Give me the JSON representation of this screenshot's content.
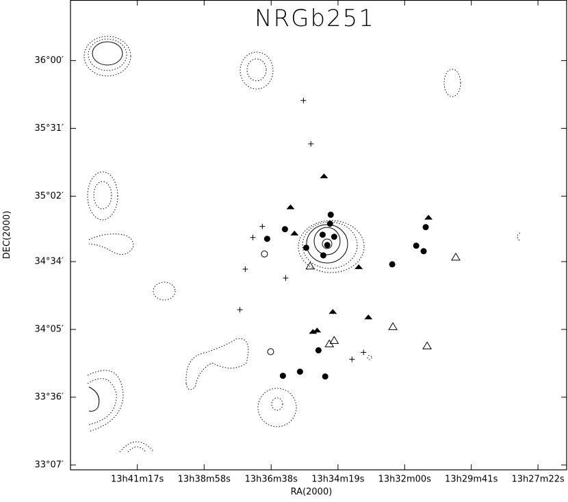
{
  "chart_data": {
    "type": "scatter",
    "title": "NRGb251",
    "x_label": "RA(2000)",
    "y_label": "DEC(2000)",
    "xlim": [
      13.7268,
      13.4395
    ],
    "ylim": [
      33.0823,
      36.4318
    ],
    "xticks": [
      {
        "value": 13.6881,
        "label": "13h41m17s"
      },
      {
        "value": 13.6494,
        "label": "13h38m58s"
      },
      {
        "value": 13.6106,
        "label": "13h36m38s"
      },
      {
        "value": 13.5719,
        "label": "13h34m19s"
      },
      {
        "value": 13.5333,
        "label": "13h32m00s"
      },
      {
        "value": 13.4947,
        "label": "13h29m41s"
      },
      {
        "value": 13.4561,
        "label": "13h27m22s"
      }
    ],
    "yticks": [
      {
        "value": 36.0,
        "label": "36°00′"
      },
      {
        "value": 35.5167,
        "label": "35°31′"
      },
      {
        "value": 35.0333,
        "label": "35°02′"
      },
      {
        "value": 34.5667,
        "label": "34°34′"
      },
      {
        "value": 34.0833,
        "label": "34°05′"
      },
      {
        "value": 33.6,
        "label": "33°36′"
      },
      {
        "value": 33.1167,
        "label": "33°07′"
      }
    ],
    "series": [
      {
        "marker": "filled-circle",
        "color": "#000000",
        "x": [
          13.5761,
          13.5765,
          13.5808,
          13.5741,
          13.5781,
          13.5903,
          13.5804,
          13.6026,
          13.6129,
          13.5405,
          13.5211,
          13.5266,
          13.5223,
          13.5832,
          13.5939,
          13.6038,
          13.5793
        ],
        "values": [
          34.9008,
          34.837,
          34.7585,
          34.7438,
          34.6849,
          34.6653,
          34.6113,
          34.7978,
          34.7291,
          34.5475,
          34.8125,
          34.68,
          34.6408,
          33.9342,
          33.782,
          33.7526,
          33.7477
        ]
      },
      {
        "marker": "filled-triangle",
        "color": "#000000",
        "x": [
          13.58,
          13.5994,
          13.5971,
          13.5599,
          13.5195,
          13.5749,
          13.5543,
          13.5864,
          13.584
        ],
        "values": [
          35.1805,
          34.9597,
          34.7732,
          34.5328,
          34.8861,
          34.2139,
          34.1746,
          34.0715,
          34.0814
        ]
      },
      {
        "marker": "open-triangle",
        "color": "#000000",
        "x": [
          13.588,
          13.5037,
          13.5401,
          13.5203,
          13.5741,
          13.5769
        ],
        "values": [
          34.5377,
          34.6015,
          34.1059,
          33.9685,
          34.0078,
          33.9832
        ]
      },
      {
        "marker": "open-circle",
        "color": "#000000",
        "x": [
          13.6145,
          13.6109
        ],
        "values": [
          34.6211,
          33.9243
        ]
      },
      {
        "marker": "plus",
        "color": "#000000",
        "x": [
          13.5919,
          13.5876,
          13.6157,
          13.6212,
          13.6256,
          13.6022,
          13.6287,
          13.5571,
          13.5638
        ],
        "values": [
          35.7154,
          35.4063,
          34.8174,
          34.7389,
          34.5132,
          34.4494,
          34.2237,
          33.9194,
          33.8704
        ]
      }
    ]
  }
}
